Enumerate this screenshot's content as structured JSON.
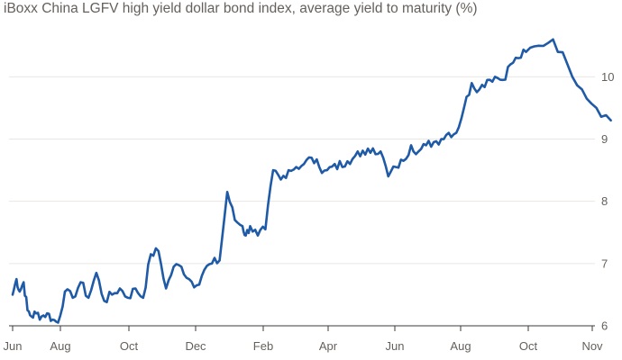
{
  "chart_data": {
    "type": "line",
    "title": "iBoxx China LGFV high yield dollar bond index, average yield to maturity (%)",
    "xlabel": "",
    "ylabel": "",
    "ylim": [
      6,
      10.8
    ],
    "y_ticks": [
      "6",
      "7",
      "8",
      "9",
      "10"
    ],
    "x_ticks": [
      "Jun",
      "Aug",
      "Oct",
      "Dec",
      "Feb",
      "Apr",
      "Jun",
      "Aug",
      "Oct",
      "Nov"
    ],
    "grid": true,
    "legend": "none",
    "color": "#1f5aa6",
    "series": [
      {
        "x": [
          "2022-06-01",
          "2022-06-06",
          "2022-06-10",
          "2022-06-15",
          "2022-06-20",
          "2022-06-25",
          "2022-07-01",
          "2022-07-08",
          "2022-07-15",
          "2022-07-22",
          "2022-07-29",
          "2022-08-05",
          "2022-08-12",
          "2022-08-19",
          "2022-08-26",
          "2022-09-02",
          "2022-09-09",
          "2022-09-16",
          "2022-09-23",
          "2022-09-30",
          "2022-10-07",
          "2022-10-14",
          "2022-10-21",
          "2022-10-28",
          "2022-11-04",
          "2022-11-11",
          "2022-11-18",
          "2022-11-25",
          "2022-12-02",
          "2022-12-09",
          "2022-12-16",
          "2022-12-23",
          "2022-12-30",
          "2023-01-06",
          "2023-01-13",
          "2023-01-16",
          "2023-01-20",
          "2023-01-27",
          "2023-02-03",
          "2023-02-10",
          "2023-02-17",
          "2023-02-24",
          "2023-03-03",
          "2023-03-10",
          "2023-03-17",
          "2023-03-24",
          "2023-03-31",
          "2023-04-07",
          "2023-04-14",
          "2023-04-21",
          "2023-04-28",
          "2023-05-05",
          "2023-05-12",
          "2023-05-19",
          "2023-05-26",
          "2023-06-02",
          "2023-06-09",
          "2023-06-16",
          "2023-06-23",
          "2023-06-30",
          "2023-07-07",
          "2023-07-14",
          "2023-07-21",
          "2023-07-28",
          "2023-08-04",
          "2023-08-11",
          "2023-08-18",
          "2023-08-25",
          "2023-09-01",
          "2023-09-08",
          "2023-09-15",
          "2023-09-22",
          "2023-09-29",
          "2023-10-06",
          "2023-10-13",
          "2023-10-20",
          "2023-10-27",
          "2023-11-03",
          "2023-11-10"
        ],
        "values": [
          6.5,
          6.75,
          6.55,
          6.7,
          6.25,
          6.15,
          6.2,
          6.15,
          6.2,
          6.1,
          6.05,
          6.55,
          6.45,
          6.7,
          6.45,
          6.85,
          6.4,
          6.5,
          6.6,
          6.45,
          6.6,
          6.45,
          7.15,
          7.2,
          6.6,
          6.95,
          6.95,
          6.75,
          6.65,
          6.9,
          7.0,
          7.05,
          8.15,
          7.7,
          7.6,
          7.45,
          7.6,
          7.45,
          7.55,
          8.5,
          8.35,
          8.5,
          8.55,
          8.6,
          8.7,
          8.55,
          8.5,
          8.6,
          8.55,
          8.6,
          8.8,
          8.75,
          8.85,
          8.8,
          8.4,
          8.55,
          8.65,
          8.9,
          8.8,
          8.9,
          8.95,
          9.0,
          9.1,
          9.1,
          9.5,
          9.9,
          9.8,
          9.95,
          10.0,
          9.95,
          10.2,
          10.3,
          10.4,
          10.5,
          10.6,
          10.2,
          9.8,
          9.5,
          9.3
        ]
      }
    ]
  }
}
